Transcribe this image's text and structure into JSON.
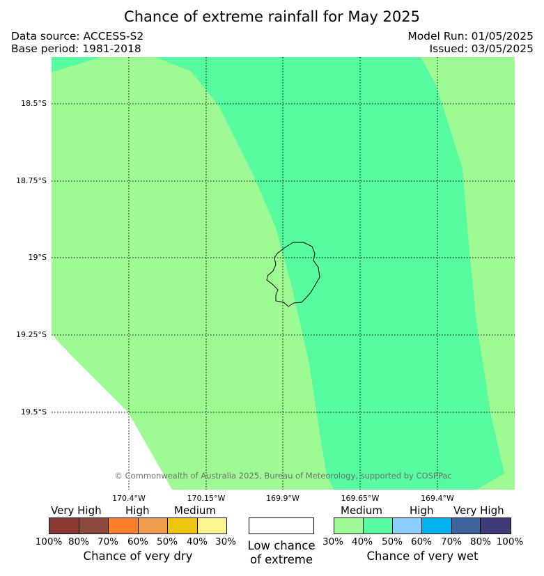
{
  "title": "Chance of extreme rainfall for May 2025",
  "data_source": "Data source: ACCESS-S2",
  "base_period": "Base period: 1981-2018",
  "model_run": "Model Run: 01/05/2025",
  "issued": "Issued: 03/05/2025",
  "latitudes": [
    "18.5°S",
    "18.75°S",
    "19°S",
    "19.25°S",
    "19.5°S"
  ],
  "longitudes": [
    "170.4°W",
    "170.15°W",
    "169.9°W",
    "169.65°W",
    "169.4°W"
  ],
  "copyright": "© Commonwealth of Australia 2025, Bureau of Meteorology, supported by COSPPac",
  "colors": {
    "medium_wet": "#9efb94",
    "medium_wet_40": "#57fba0",
    "grid": "#000000"
  },
  "legend_dry": {
    "words": [
      "Very High",
      "High",
      "Medium"
    ],
    "colors": [
      "#8b3a33",
      "#8c4b3c",
      "#fb8128",
      "#ef9e4c",
      "#ecc50c",
      "#fdf68f"
    ],
    "percents": [
      "100%",
      "80%",
      "70%",
      "60%",
      "50%",
      "40%",
      "30%"
    ],
    "caption": "Chance of very dry"
  },
  "legend_low": {
    "caption_line1": "Low chance",
    "caption_line2": "of extreme"
  },
  "legend_wet": {
    "words": [
      "Medium",
      "High",
      "Very High"
    ],
    "colors": [
      "#9efb94",
      "#57fba0",
      "#8bcdfb",
      "#04b1f0",
      "#3c649e",
      "#3e3c78"
    ],
    "percents": [
      "30%",
      "40%",
      "50%",
      "60%",
      "70%",
      "80%",
      "100%"
    ],
    "caption": "Chance of very wet"
  }
}
